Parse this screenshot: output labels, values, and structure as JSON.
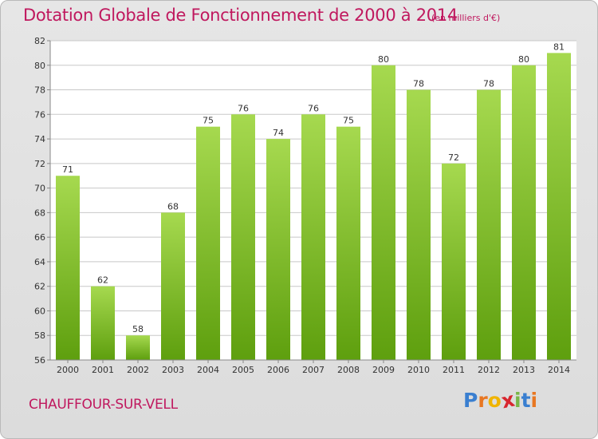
{
  "title": "Dotation Globale de Fonctionnement de 2000 à 2014",
  "subtitle": "(en milliers d'€)",
  "commune": "CHAUFFOUR-SUR-VELL",
  "logo": {
    "letters": [
      "P",
      "r",
      "o",
      "x",
      "i",
      "t",
      "i"
    ],
    "colors": [
      "#3a7fd0",
      "#e87722",
      "#f0b400",
      "#d8262f",
      "#7ab648",
      "#3a7fd0",
      "#e87722"
    ]
  },
  "colors": {
    "bar_top": "#a6d94f",
    "bar_bottom": "#5e9f0e",
    "grid": "#c8c8c8",
    "text": "#c0185e"
  },
  "chart_data": {
    "type": "bar",
    "categories": [
      "2000",
      "2001",
      "2002",
      "2003",
      "2004",
      "2005",
      "2006",
      "2007",
      "2008",
      "2009",
      "2010",
      "2011",
      "2012",
      "2013",
      "2014"
    ],
    "values": [
      71,
      62,
      58,
      68,
      75,
      76,
      74,
      76,
      75,
      80,
      78,
      72,
      78,
      80,
      81
    ],
    "yticks": [
      56,
      58,
      60,
      62,
      64,
      66,
      68,
      70,
      72,
      74,
      76,
      78,
      80,
      82
    ],
    "ylim": [
      56,
      82
    ],
    "grid": true
  }
}
